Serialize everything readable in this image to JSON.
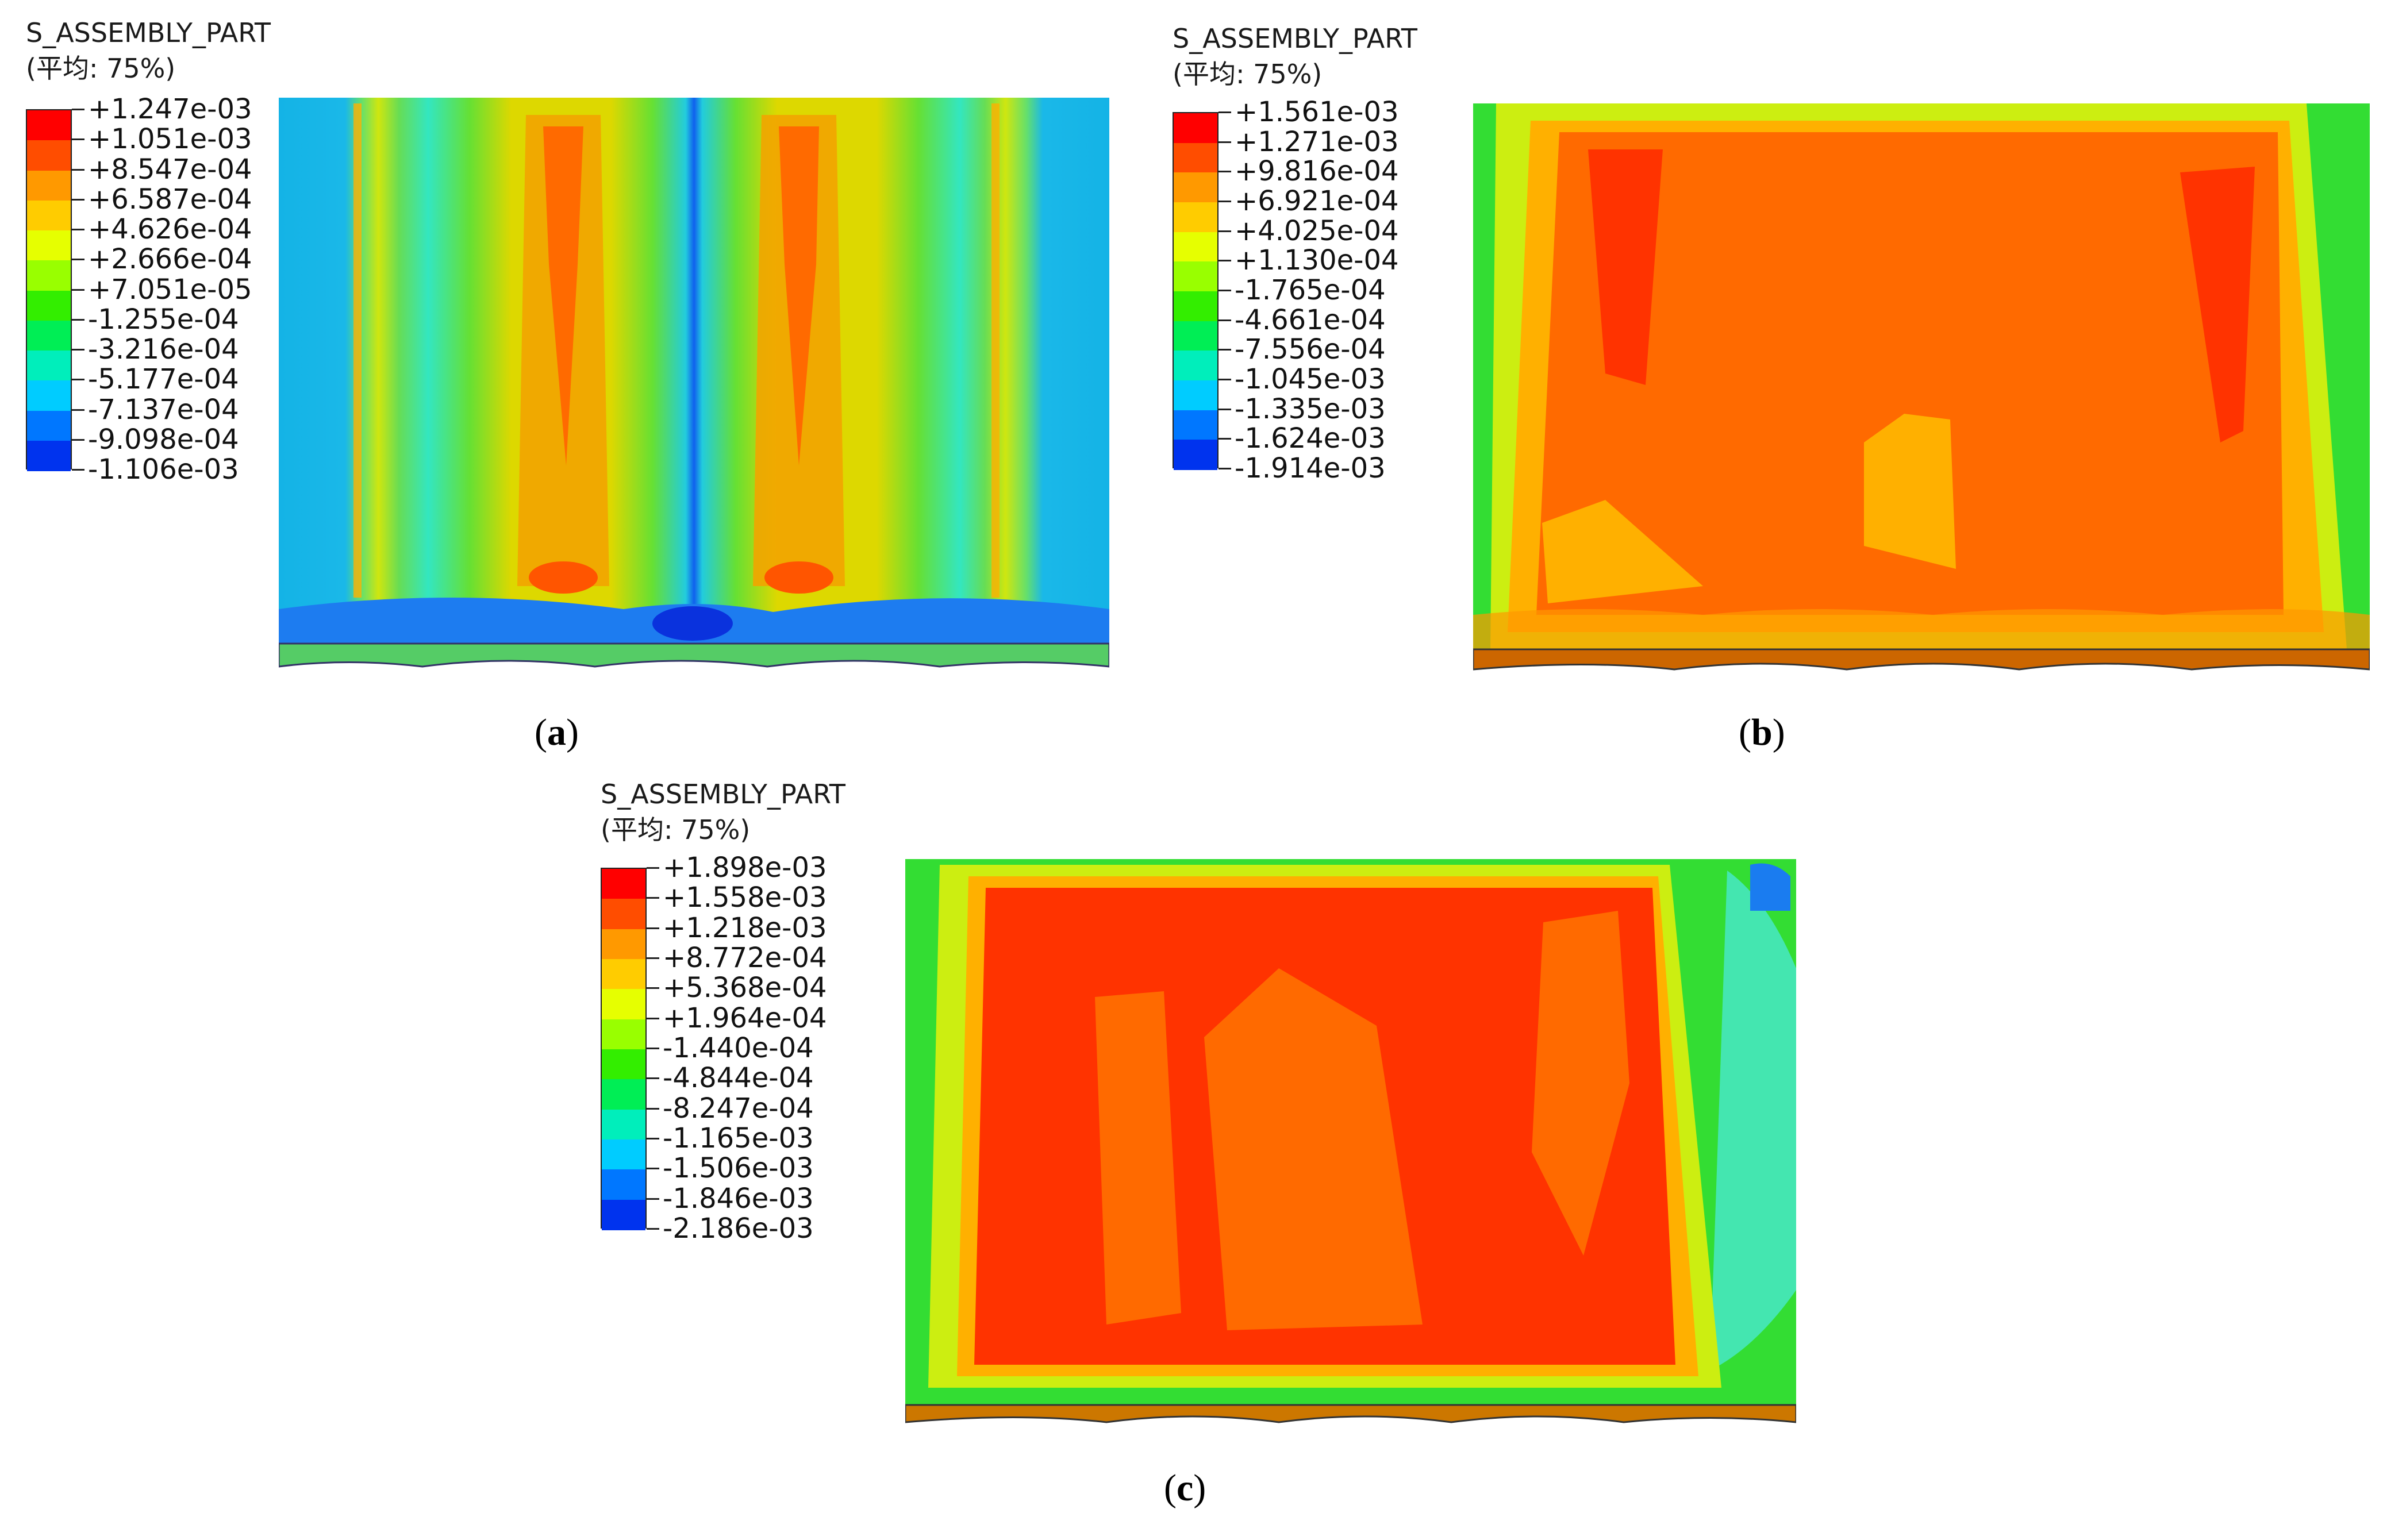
{
  "panels": [
    {
      "id": "a",
      "legend_title": "S_ASSEMBLY_PART",
      "legend_subtitle": "(平均: 75%)",
      "legend_values": [
        "+1.247e-03",
        "+1.051e-03",
        "+8.547e-04",
        "+6.587e-04",
        "+4.626e-04",
        "+2.666e-04",
        "+7.051e-05",
        "-1.255e-04",
        "-3.216e-04",
        "-5.177e-04",
        "-7.137e-04",
        "-9.098e-04",
        "-1.106e-03"
      ],
      "caption_letter": "a"
    },
    {
      "id": "b",
      "legend_title": "S_ASSEMBLY_PART",
      "legend_subtitle": "(平均: 75%)",
      "legend_values": [
        "+1.561e-03",
        "+1.271e-03",
        "+9.816e-04",
        "+6.921e-04",
        "+4.025e-04",
        "+1.130e-04",
        "-1.765e-04",
        "-4.661e-04",
        "-7.556e-04",
        "-1.045e-03",
        "-1.335e-03",
        "-1.624e-03",
        "-1.914e-03"
      ],
      "caption_letter": "b"
    },
    {
      "id": "c",
      "legend_title": "S_ASSEMBLY_PART",
      "legend_subtitle": "(平均: 75%)",
      "legend_values": [
        "+1.898e-03",
        "+1.558e-03",
        "+1.218e-03",
        "+8.772e-04",
        "+5.368e-04",
        "+1.964e-04",
        "-1.440e-04",
        "-4.844e-04",
        "-8.247e-04",
        "-1.165e-03",
        "-1.506e-03",
        "-1.846e-03",
        "-2.186e-03"
      ],
      "caption_letter": "c"
    }
  ],
  "colormap": [
    "#ff0000",
    "#ff4d00",
    "#ff9900",
    "#ffcc00",
    "#e6ff00",
    "#99ff00",
    "#33ee00",
    "#00ee55",
    "#00eebb",
    "#00ccff",
    "#0077ff",
    "#0033ee",
    "#0000dd"
  ]
}
